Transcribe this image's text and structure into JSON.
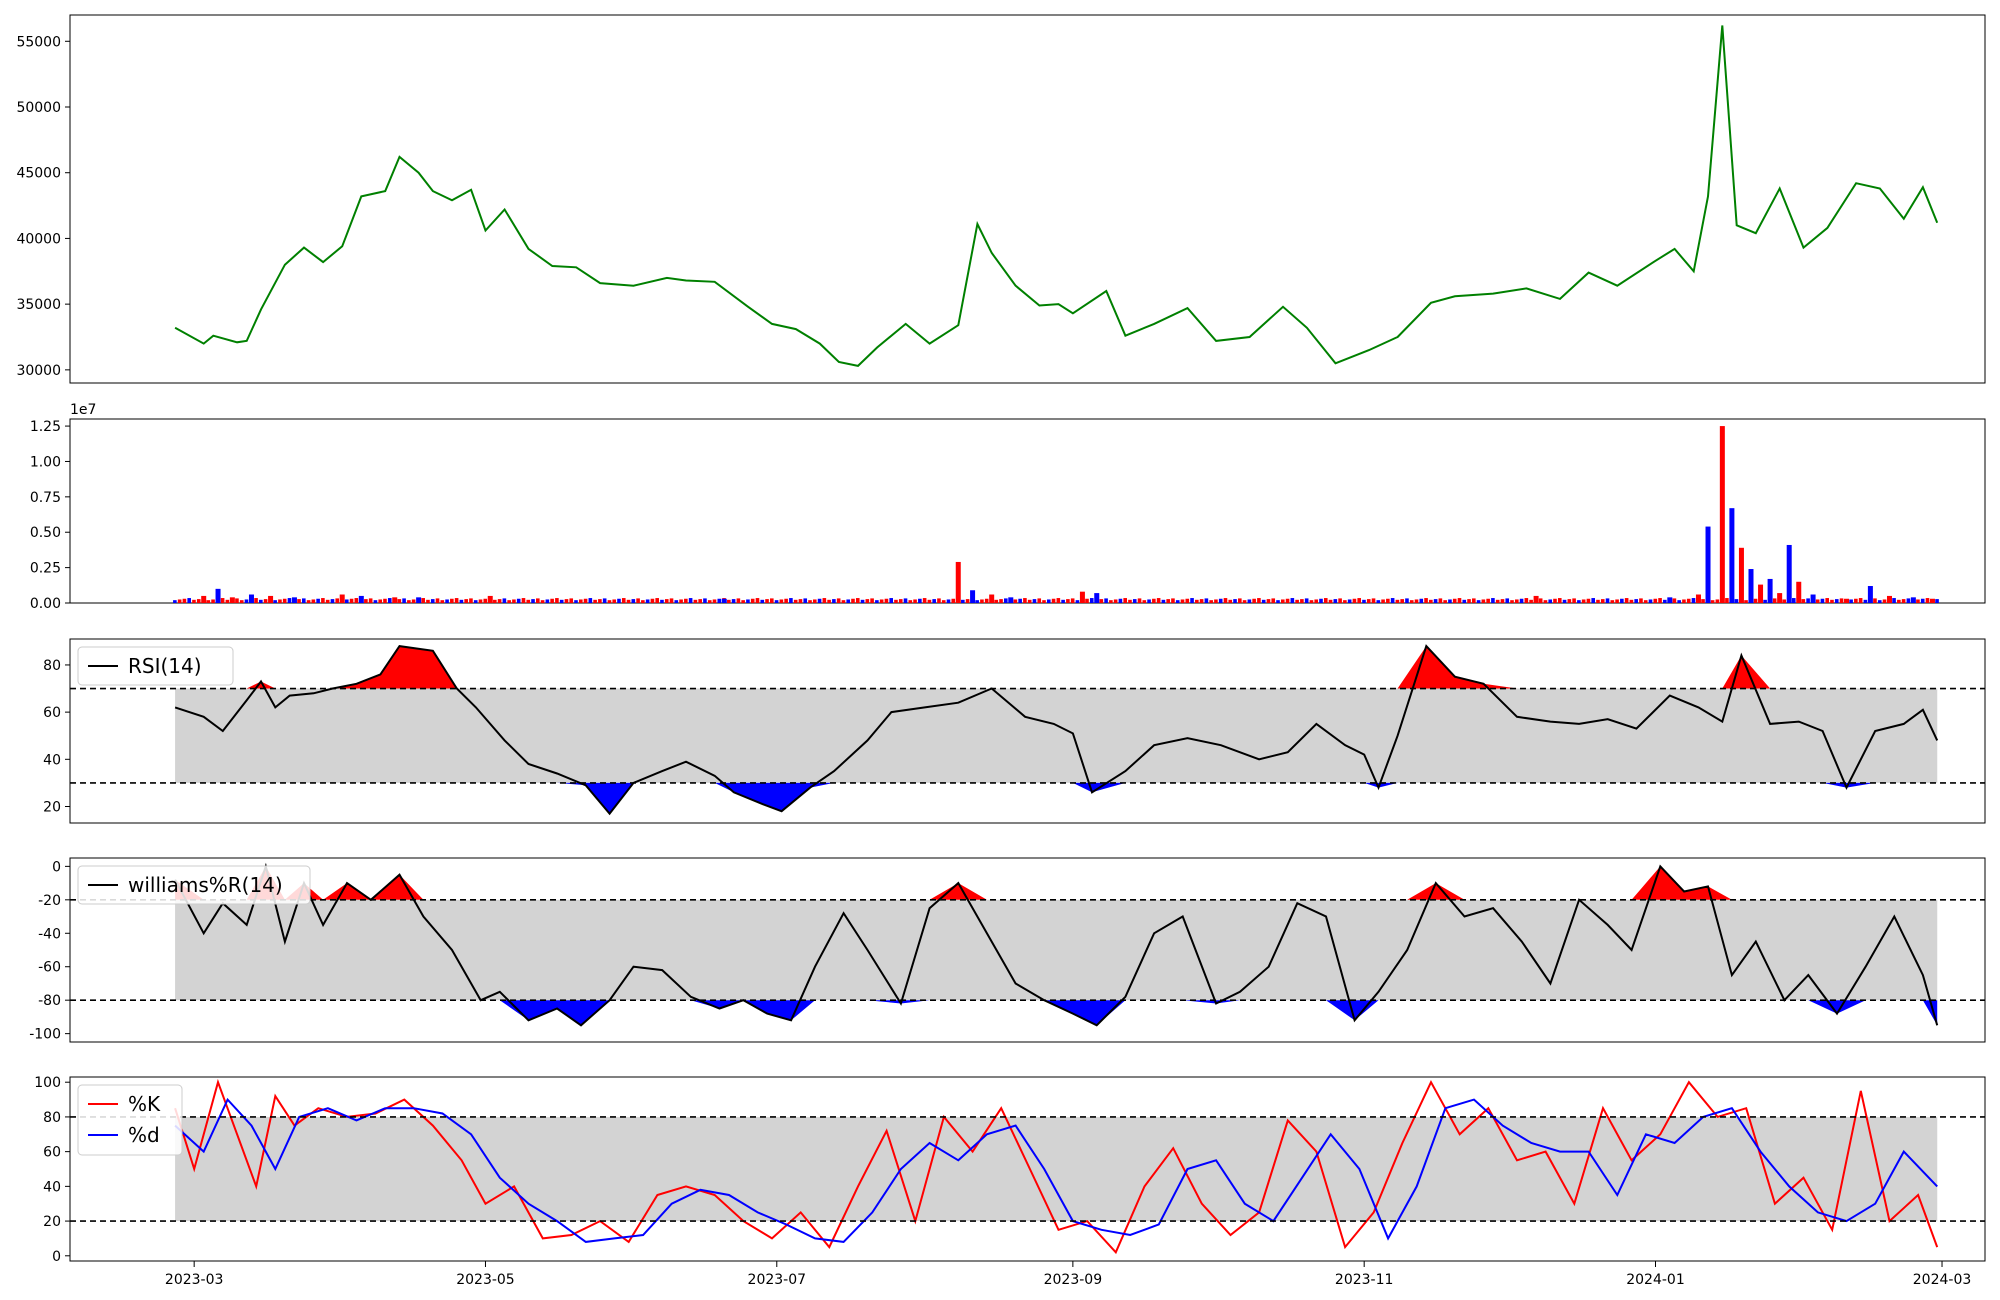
{
  "chart_data": [
    {
      "type": "line",
      "panel": "price",
      "x_axis": {
        "start": "2023-02-25",
        "end": "2024-02-29",
        "range": [
          "2023-02-03",
          "2024-03-10"
        ],
        "ticks": [
          "2023-03",
          "2023-05",
          "2023-07",
          "2023-09",
          "2023-11",
          "2024-01",
          "2024-03"
        ]
      },
      "ylim": [
        29000,
        57000
      ],
      "yticks": [
        30000,
        35000,
        40000,
        45000,
        50000,
        55000
      ],
      "series": [
        {
          "color": "#008000",
          "x": [
            "2023-02-25",
            "2023-03-03",
            "2023-03-05",
            "2023-03-10",
            "2023-03-12",
            "2023-03-15",
            "2023-03-20",
            "2023-03-24",
            "2023-03-28",
            "2023-04-01",
            "2023-04-05",
            "2023-04-10",
            "2023-04-13",
            "2023-04-17",
            "2023-04-20",
            "2023-04-24",
            "2023-04-28",
            "2023-05-01",
            "2023-05-05",
            "2023-05-10",
            "2023-05-15",
            "2023-05-20",
            "2023-05-25",
            "2023-06-01",
            "2023-06-08",
            "2023-06-12",
            "2023-06-18",
            "2023-06-25",
            "2023-06-30",
            "2023-07-05",
            "2023-07-10",
            "2023-07-14",
            "2023-07-18",
            "2023-07-22",
            "2023-07-28",
            "2023-08-02",
            "2023-08-08",
            "2023-08-12",
            "2023-08-15",
            "2023-08-20",
            "2023-08-25",
            "2023-08-29",
            "2023-09-01",
            "2023-09-08",
            "2023-09-12",
            "2023-09-18",
            "2023-09-25",
            "2023-10-01",
            "2023-10-08",
            "2023-10-15",
            "2023-10-20",
            "2023-10-26",
            "2023-11-02",
            "2023-11-08",
            "2023-11-15",
            "2023-11-20",
            "2023-11-28",
            "2023-12-05",
            "2023-12-12",
            "2023-12-18",
            "2023-12-24",
            "2024-01-01",
            "2024-01-05",
            "2024-01-09",
            "2024-01-12",
            "2024-01-15",
            "2024-01-18",
            "2024-01-22",
            "2024-01-27",
            "2024-02-01",
            "2024-02-06",
            "2024-02-12",
            "2024-02-17",
            "2024-02-22",
            "2024-02-26",
            "2024-02-29"
          ],
          "y": [
            33200,
            32000,
            32600,
            32100,
            32200,
            34600,
            38000,
            39300,
            38200,
            39400,
            43200,
            43600,
            46200,
            45000,
            43600,
            42900,
            43700,
            40600,
            42200,
            39200,
            37900,
            37800,
            36600,
            36400,
            37000,
            36800,
            36700,
            34800,
            33500,
            33100,
            32000,
            30600,
            30300,
            31700,
            33500,
            32000,
            33400,
            41100,
            38900,
            36400,
            34900,
            35000,
            34300,
            36000,
            32600,
            33500,
            34700,
            32200,
            32500,
            34800,
            33200,
            30500,
            31500,
            32500,
            35100,
            35600,
            35800,
            36200,
            35400,
            37400,
            36400,
            38300,
            39200,
            37500,
            43200,
            56200,
            41000,
            40400,
            43800,
            39300,
            40800,
            44200,
            43800,
            41500,
            43900,
            41200
          ]
        }
      ]
    },
    {
      "type": "bar",
      "panel": "volume",
      "offset_text": "1e7",
      "ylim": [
        0,
        1.3
      ],
      "yticks": [
        "0.00",
        "0.25",
        "0.50",
        "0.75",
        "1.00",
        "1.25"
      ],
      "series": [
        {
          "name": "",
          "color_up": "#ff0000",
          "color_down": "#0000ff",
          "x": [
            "2023-03-03",
            "2023-03-06",
            "2023-03-09",
            "2023-03-13",
            "2023-03-17",
            "2023-03-22",
            "2023-04-01",
            "2023-04-05",
            "2023-04-12",
            "2023-04-17",
            "2023-05-02",
            "2023-06-20",
            "2023-08-08",
            "2023-08-11",
            "2023-08-15",
            "2023-08-19",
            "2023-09-03",
            "2023-09-06",
            "2023-12-07",
            "2024-01-04",
            "2024-01-10",
            "2024-01-12",
            "2024-01-15",
            "2024-01-17",
            "2024-01-19",
            "2024-01-21",
            "2024-01-23",
            "2024-01-25",
            "2024-01-27",
            "2024-01-29",
            "2024-01-31",
            "2024-02-03",
            "2024-02-10",
            "2024-02-15",
            "2024-02-19",
            "2024-02-24",
            "2024-02-28"
          ],
          "values": [
            0.05,
            0.1,
            0.04,
            0.06,
            0.05,
            0.04,
            0.06,
            0.05,
            0.04,
            0.04,
            0.05,
            0.03,
            0.29,
            0.09,
            0.06,
            0.04,
            0.08,
            0.07,
            0.05,
            0.04,
            0.06,
            0.54,
            1.25,
            0.67,
            0.39,
            0.24,
            0.13,
            0.17,
            0.07,
            0.41,
            0.15,
            0.06,
            0.03,
            0.12,
            0.05,
            0.04,
            0.03
          ]
        }
      ]
    },
    {
      "type": "line",
      "panel": "rsi",
      "legend": "RSI(14)",
      "ylim": [
        13,
        91
      ],
      "yticks": [
        20,
        40,
        60,
        80
      ],
      "thresholds": [
        30,
        70
      ],
      "series": [
        {
          "name": "RSI(14)",
          "color": "#000000",
          "x": [
            "2023-02-25",
            "2023-03-03",
            "2023-03-07",
            "2023-03-12",
            "2023-03-15",
            "2023-03-18",
            "2023-03-21",
            "2023-03-26",
            "2023-03-30",
            "2023-04-04",
            "2023-04-09",
            "2023-04-13",
            "2023-04-20",
            "2023-04-25",
            "2023-04-29",
            "2023-05-05",
            "2023-05-10",
            "2023-05-16",
            "2023-05-22",
            "2023-05-27",
            "2023-06-01",
            "2023-06-07",
            "2023-06-12",
            "2023-06-18",
            "2023-06-22",
            "2023-06-28",
            "2023-07-02",
            "2023-07-08",
            "2023-07-13",
            "2023-07-20",
            "2023-07-25",
            "2023-08-01",
            "2023-08-08",
            "2023-08-15",
            "2023-08-22",
            "2023-08-28",
            "2023-09-01",
            "2023-09-05",
            "2023-09-12",
            "2023-09-18",
            "2023-09-25",
            "2023-10-02",
            "2023-10-10",
            "2023-10-16",
            "2023-10-22",
            "2023-10-28",
            "2023-11-01",
            "2023-11-04",
            "2023-11-08",
            "2023-11-14",
            "2023-11-20",
            "2023-11-26",
            "2023-12-03",
            "2023-12-10",
            "2023-12-16",
            "2023-12-22",
            "2023-12-28",
            "2024-01-04",
            "2024-01-10",
            "2024-01-15",
            "2024-01-19",
            "2024-01-25",
            "2024-01-31",
            "2024-02-05",
            "2024-02-10",
            "2024-02-16",
            "2024-02-22",
            "2024-02-26",
            "2024-02-29"
          ],
          "y": [
            62,
            58,
            52,
            65,
            73,
            62,
            67,
            68,
            70,
            72,
            76,
            88,
            86,
            70,
            62,
            48,
            38,
            34,
            29,
            17,
            30,
            35,
            39,
            33,
            26,
            21,
            18,
            28,
            35,
            48,
            60,
            62,
            64,
            70,
            58,
            55,
            51,
            26,
            35,
            46,
            49,
            46,
            40,
            43,
            55,
            46,
            42,
            28,
            50,
            88,
            75,
            72,
            58,
            56,
            55,
            57,
            53,
            67,
            62,
            56,
            84,
            55,
            56,
            52,
            28,
            52,
            55,
            61,
            48
          ]
        }
      ]
    },
    {
      "type": "line",
      "panel": "williams",
      "legend": "williams%R(14)",
      "ylim": [
        -105,
        5
      ],
      "yticks": [
        0,
        -20,
        -40,
        -60,
        -80,
        -100
      ],
      "thresholds": [
        -20,
        -80
      ],
      "series": [
        {
          "name": "williams%R(14)",
          "color": "#000000",
          "x": [
            "2023-02-25",
            "2023-03-03",
            "2023-03-07",
            "2023-03-12",
            "2023-03-16",
            "2023-03-20",
            "2023-03-24",
            "2023-03-28",
            "2023-04-02",
            "2023-04-07",
            "2023-04-13",
            "2023-04-18",
            "2023-04-24",
            "2023-04-30",
            "2023-05-04",
            "2023-05-10",
            "2023-05-16",
            "2023-05-21",
            "2023-05-27",
            "2023-06-01",
            "2023-06-07",
            "2023-06-13",
            "2023-06-19",
            "2023-06-24",
            "2023-06-29",
            "2023-07-04",
            "2023-07-09",
            "2023-07-15",
            "2023-07-20",
            "2023-07-27",
            "2023-08-02",
            "2023-08-08",
            "2023-08-14",
            "2023-08-20",
            "2023-08-26",
            "2023-09-01",
            "2023-09-06",
            "2023-09-12",
            "2023-09-18",
            "2023-09-24",
            "2023-10-01",
            "2023-10-06",
            "2023-10-12",
            "2023-10-18",
            "2023-10-24",
            "2023-10-30",
            "2023-11-04",
            "2023-11-10",
            "2023-11-16",
            "2023-11-22",
            "2023-11-28",
            "2023-12-04",
            "2023-12-10",
            "2023-12-16",
            "2023-12-22",
            "2023-12-27",
            "2024-01-02",
            "2024-01-07",
            "2024-01-12",
            "2024-01-17",
            "2024-01-22",
            "2024-01-28",
            "2024-02-02",
            "2024-02-08",
            "2024-02-14",
            "2024-02-20",
            "2024-02-26",
            "2024-02-29"
          ],
          "y": [
            -8,
            -40,
            -22,
            -35,
            0,
            -45,
            -10,
            -35,
            -10,
            -20,
            -5,
            -30,
            -50,
            -80,
            -75,
            -92,
            -85,
            -95,
            -80,
            -60,
            -62,
            -78,
            -85,
            -80,
            -88,
            -92,
            -60,
            -28,
            -50,
            -82,
            -25,
            -10,
            -40,
            -70,
            -80,
            -88,
            -95,
            -78,
            -40,
            -30,
            -82,
            -75,
            -60,
            -22,
            -30,
            -92,
            -75,
            -50,
            -10,
            -30,
            -25,
            -45,
            -70,
            -20,
            -35,
            -50,
            0,
            -15,
            -12,
            -65,
            -45,
            -80,
            -65,
            -88,
            -60,
            -30,
            -65,
            -95
          ]
        }
      ]
    },
    {
      "type": "line",
      "panel": "stochastic",
      "legend": [
        "%K",
        "%d"
      ],
      "ylim": [
        -3,
        103
      ],
      "yticks": [
        0,
        20,
        40,
        60,
        80,
        100
      ],
      "thresholds": [
        20,
        80
      ],
      "series": [
        {
          "name": "%K",
          "color": "#ff0000",
          "x": [
            "2023-02-25",
            "2023-03-01",
            "2023-03-06",
            "2023-03-10",
            "2023-03-14",
            "2023-03-18",
            "2023-03-22",
            "2023-03-27",
            "2023-04-02",
            "2023-04-08",
            "2023-04-14",
            "2023-04-20",
            "2023-04-26",
            "2023-05-01",
            "2023-05-07",
            "2023-05-13",
            "2023-05-19",
            "2023-05-25",
            "2023-05-31",
            "2023-06-06",
            "2023-06-12",
            "2023-06-18",
            "2023-06-24",
            "2023-06-30",
            "2023-07-06",
            "2023-07-12",
            "2023-07-18",
            "2023-07-24",
            "2023-07-30",
            "2023-08-05",
            "2023-08-11",
            "2023-08-17",
            "2023-08-23",
            "2023-08-29",
            "2023-09-04",
            "2023-09-10",
            "2023-09-16",
            "2023-09-22",
            "2023-09-28",
            "2023-10-04",
            "2023-10-10",
            "2023-10-16",
            "2023-10-22",
            "2023-10-28",
            "2023-11-03",
            "2023-11-09",
            "2023-11-15",
            "2023-11-21",
            "2023-11-27",
            "2023-12-03",
            "2023-12-09",
            "2023-12-15",
            "2023-12-21",
            "2023-12-27",
            "2024-01-02",
            "2024-01-08",
            "2024-01-14",
            "2024-01-20",
            "2024-01-26",
            "2024-02-01",
            "2024-02-07",
            "2024-02-13",
            "2024-02-19",
            "2024-02-25",
            "2024-02-29"
          ],
          "y": [
            85,
            50,
            100,
            70,
            40,
            92,
            75,
            85,
            80,
            82,
            90,
            75,
            55,
            30,
            40,
            10,
            12,
            20,
            8,
            35,
            40,
            35,
            20,
            10,
            25,
            5,
            40,
            72,
            20,
            80,
            60,
            85,
            50,
            15,
            20,
            2,
            40,
            62,
            30,
            12,
            25,
            78,
            60,
            5,
            25,
            65,
            100,
            70,
            85,
            55,
            60,
            30,
            85,
            55,
            70,
            100,
            80,
            85,
            30,
            45,
            15,
            95,
            20,
            35,
            5
          ]
        },
        {
          "name": "%d",
          "color": "#0000ff",
          "x": [
            "2023-02-25",
            "2023-03-03",
            "2023-03-08",
            "2023-03-13",
            "2023-03-18",
            "2023-03-23",
            "2023-03-29",
            "2023-04-04",
            "2023-04-10",
            "2023-04-16",
            "2023-04-22",
            "2023-04-28",
            "2023-05-04",
            "2023-05-10",
            "2023-05-16",
            "2023-05-22",
            "2023-05-28",
            "2023-06-03",
            "2023-06-09",
            "2023-06-15",
            "2023-06-21",
            "2023-06-27",
            "2023-07-03",
            "2023-07-09",
            "2023-07-15",
            "2023-07-21",
            "2023-07-27",
            "2023-08-02",
            "2023-08-08",
            "2023-08-14",
            "2023-08-20",
            "2023-08-26",
            "2023-09-01",
            "2023-09-07",
            "2023-09-13",
            "2023-09-19",
            "2023-09-25",
            "2023-10-01",
            "2023-10-07",
            "2023-10-13",
            "2023-10-19",
            "2023-10-25",
            "2023-10-31",
            "2023-11-06",
            "2023-11-12",
            "2023-11-18",
            "2023-11-24",
            "2023-11-30",
            "2023-12-06",
            "2023-12-12",
            "2023-12-18",
            "2023-12-24",
            "2023-12-30",
            "2024-01-05",
            "2024-01-11",
            "2024-01-17",
            "2024-01-23",
            "2024-01-29",
            "2024-02-04",
            "2024-02-10",
            "2024-02-16",
            "2024-02-22",
            "2024-02-29"
          ],
          "y": [
            75,
            60,
            90,
            75,
            50,
            80,
            85,
            78,
            85,
            85,
            82,
            70,
            45,
            30,
            20,
            8,
            10,
            12,
            30,
            38,
            35,
            25,
            18,
            10,
            8,
            25,
            50,
            65,
            55,
            70,
            75,
            50,
            20,
            15,
            12,
            18,
            50,
            55,
            30,
            20,
            45,
            70,
            50,
            10,
            40,
            85,
            90,
            75,
            65,
            60,
            60,
            35,
            70,
            65,
            80,
            85,
            60,
            40,
            25,
            20,
            30,
            60,
            40
          ]
        }
      ]
    }
  ]
}
